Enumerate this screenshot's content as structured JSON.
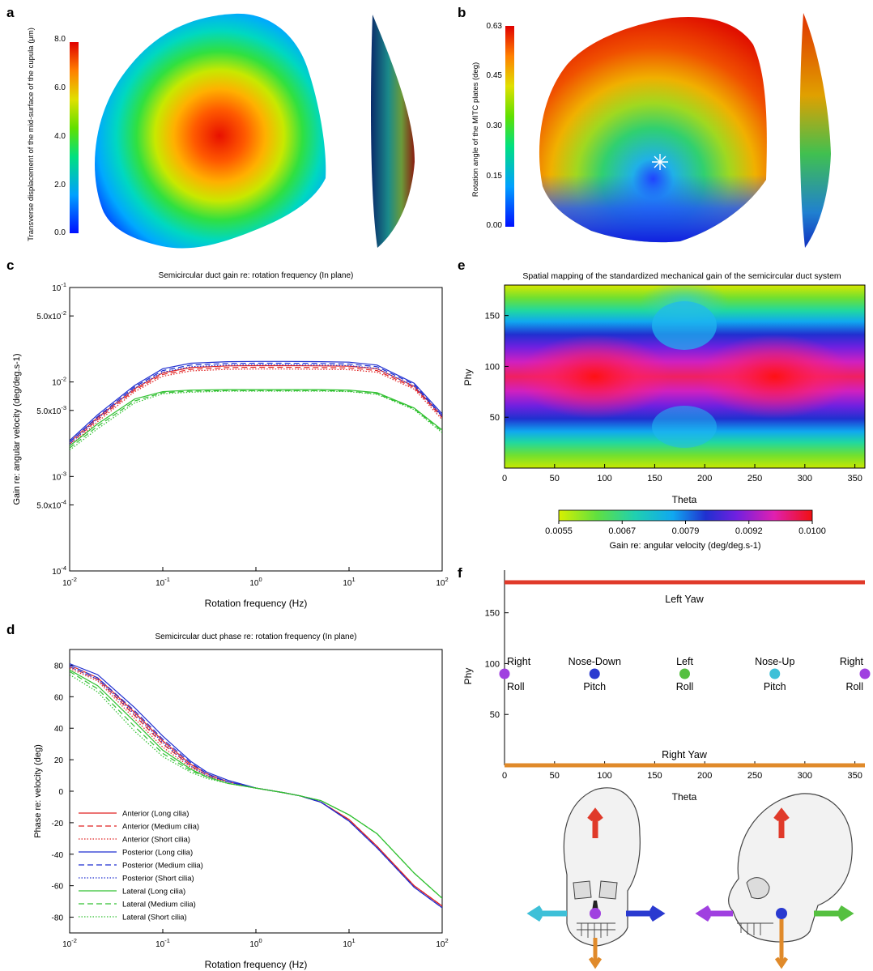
{
  "panels": {
    "a": {
      "letter": "a",
      "colorbar_label": "Transverse displacement of the mid-surface of the cupula (μm)",
      "colorbar_ticks": [
        "8.0",
        "6.0",
        "4.0",
        "2.0",
        "0.0"
      ]
    },
    "b": {
      "letter": "b",
      "colorbar_label": "Rotation angle of the MITC plates (deg)",
      "colorbar_ticks": [
        "0.63",
        "0.45",
        "0.30",
        "0.15",
        "0.00"
      ]
    },
    "c": {
      "letter": "c",
      "title": "Semicircular duct gain re: rotation frequency (In plane)",
      "xlabel": "Rotation frequency (Hz)",
      "ylabel": "Gain re: angular velocity (deg/deg.s-1)",
      "y_ticks": [
        {
          "base": "10",
          "exp": "-1",
          "value": 0.1
        },
        {
          "base": "5.0x10",
          "exp": "-2",
          "value": 0.05
        },
        {
          "base": "10",
          "exp": "-2",
          "value": 0.01
        },
        {
          "base": "5.0x10",
          "exp": "-3",
          "value": 0.005
        },
        {
          "base": "10",
          "exp": "-3",
          "value": 0.001
        },
        {
          "base": "5.0x10",
          "exp": "-4",
          "value": 0.0005
        },
        {
          "base": "10",
          "exp": "-4",
          "value": 0.0001
        }
      ],
      "x_ticks": [
        {
          "base": "10",
          "exp": "-2",
          "value": 0.01
        },
        {
          "base": "10",
          "exp": "-1",
          "value": 0.1
        },
        {
          "base": "10",
          "exp": "0",
          "value": 1
        },
        {
          "base": "10",
          "exp": "1",
          "value": 10
        },
        {
          "base": "10",
          "exp": "2",
          "value": 100
        }
      ]
    },
    "d": {
      "letter": "d",
      "title": "Semicircular duct phase re: rotation frequency (In plane)",
      "xlabel": "Rotation frequency (Hz)",
      "ylabel": "Phase re: velocity (deg)",
      "y_ticks": [
        "80",
        "60",
        "40",
        "20",
        "0",
        "-20",
        "-40",
        "-60",
        "-80"
      ],
      "x_ticks": [
        {
          "base": "10",
          "exp": "-2"
        },
        {
          "base": "10",
          "exp": "-1"
        },
        {
          "base": "10",
          "exp": "0"
        },
        {
          "base": "10",
          "exp": "1"
        },
        {
          "base": "10",
          "exp": "2"
        }
      ]
    },
    "e": {
      "letter": "e",
      "title": "Spatial mapping of the standardized mechanical gain of the semicircular duct system",
      "xlabel": "Theta",
      "ylabel": "Phy",
      "x_ticks": [
        "0",
        "50",
        "100",
        "150",
        "200",
        "250",
        "300",
        "350"
      ],
      "y_ticks": [
        "150",
        "100",
        "50"
      ],
      "colorbar_ticks": [
        "0.0055",
        "0.0067",
        "0.0079",
        "0.0092",
        "0.0100"
      ],
      "colorbar_label": "Gain re: angular velocity (deg/deg.s-1)"
    },
    "f": {
      "letter": "f",
      "xlabel": "Theta",
      "ylabel": "Phy",
      "x_ticks": [
        "0",
        "50",
        "100",
        "150",
        "200",
        "250",
        "300",
        "350"
      ],
      "y_ticks": [
        "150",
        "100",
        "50"
      ],
      "top_line_label": "Left Yaw",
      "bottom_line_label": "Right Yaw",
      "points": [
        {
          "theta": 0,
          "phy": 90,
          "top": "Right",
          "bottom": "Roll",
          "color": "#a040e0"
        },
        {
          "theta": 90,
          "phy": 90,
          "top": "Nose-Down",
          "bottom": "Pitch",
          "color": "#2a3ad0"
        },
        {
          "theta": 180,
          "phy": 90,
          "top": "Left",
          "bottom": "Roll",
          "color": "#55c040"
        },
        {
          "theta": 270,
          "phy": 90,
          "top": "Nose-Up",
          "bottom": "Pitch",
          "color": "#3ec0d8"
        },
        {
          "theta": 360,
          "phy": 90,
          "top": "Right",
          "bottom": "Roll",
          "color": "#a040e0"
        }
      ],
      "yaw_colors": {
        "left": "#e03a2a",
        "right": "#e08a2a"
      },
      "skull_icons": [
        "skull-front-icon",
        "skull-side-icon"
      ]
    }
  },
  "chart_data": [
    {
      "type": "line",
      "panel": "c",
      "title": "Semicircular duct gain re: rotation frequency (In plane)",
      "xlabel": "Rotation frequency (Hz)",
      "ylabel": "Gain re: angular velocity (deg/deg.s-1)",
      "x_scale": "log",
      "y_scale": "log",
      "xlim": [
        0.01,
        100
      ],
      "ylim": [
        0.0001,
        0.1
      ],
      "x": [
        0.01,
        0.02,
        0.05,
        0.1,
        0.2,
        0.5,
        1,
        2,
        5,
        10,
        20,
        50,
        100
      ],
      "series": [
        {
          "name": "Anterior (Long cilia)",
          "color": "#e02020",
          "dash": "solid",
          "values": [
            0.0023,
            0.0042,
            0.0085,
            0.0125,
            0.0142,
            0.0148,
            0.0149,
            0.0149,
            0.0148,
            0.0147,
            0.0138,
            0.009,
            0.0044
          ]
        },
        {
          "name": "Anterior (Medium cilia)",
          "color": "#e02020",
          "dash": "dash",
          "values": [
            0.0022,
            0.004,
            0.0082,
            0.012,
            0.0136,
            0.0142,
            0.0143,
            0.0143,
            0.0142,
            0.0141,
            0.0132,
            0.0087,
            0.0042
          ]
        },
        {
          "name": "Anterior (Short cilia)",
          "color": "#e02020",
          "dash": "dot",
          "values": [
            0.0021,
            0.0038,
            0.0079,
            0.0115,
            0.0131,
            0.0136,
            0.0137,
            0.0137,
            0.0136,
            0.0135,
            0.0127,
            0.0084,
            0.004
          ]
        },
        {
          "name": "Posterior (Long cilia)",
          "color": "#1f2fd0",
          "dash": "solid",
          "values": [
            0.0024,
            0.0045,
            0.0092,
            0.0138,
            0.0158,
            0.0164,
            0.0165,
            0.0165,
            0.0164,
            0.0162,
            0.0151,
            0.0097,
            0.0046
          ]
        },
        {
          "name": "Posterior (Medium cilia)",
          "color": "#1f2fd0",
          "dash": "dash",
          "values": [
            0.0023,
            0.0043,
            0.0089,
            0.0132,
            0.0151,
            0.0157,
            0.0158,
            0.0158,
            0.0157,
            0.0155,
            0.0145,
            0.0094,
            0.0044
          ]
        },
        {
          "name": "Posterior (Short cilia)",
          "color": "#1f2fd0",
          "dash": "dot",
          "values": [
            0.0022,
            0.0041,
            0.0086,
            0.0127,
            0.0145,
            0.0151,
            0.0152,
            0.0152,
            0.0151,
            0.0149,
            0.0139,
            0.009,
            0.0043
          ]
        },
        {
          "name": "Lateral (Long cilia)",
          "color": "#30c030",
          "dash": "solid",
          "values": [
            0.0021,
            0.0036,
            0.0066,
            0.0079,
            0.0082,
            0.0083,
            0.0083,
            0.0083,
            0.0083,
            0.0082,
            0.0077,
            0.0053,
            0.0031
          ]
        },
        {
          "name": "Lateral (Medium cilia)",
          "color": "#30c030",
          "dash": "dash",
          "values": [
            0.002,
            0.0034,
            0.0063,
            0.0077,
            0.008,
            0.0081,
            0.0081,
            0.0081,
            0.0081,
            0.008,
            0.0075,
            0.0052,
            0.003
          ]
        },
        {
          "name": "Lateral (Short cilia)",
          "color": "#30c030",
          "dash": "dot",
          "values": [
            0.0019,
            0.0032,
            0.006,
            0.0075,
            0.0078,
            0.008,
            0.008,
            0.008,
            0.008,
            0.0079,
            0.0074,
            0.0051,
            0.0029
          ]
        }
      ]
    },
    {
      "type": "line",
      "panel": "d",
      "title": "Semicircular duct phase re: rotation frequency (In plane)",
      "xlabel": "Rotation frequency (Hz)",
      "ylabel": "Phase re: velocity (deg)",
      "x_scale": "log",
      "xlim": [
        0.01,
        100
      ],
      "ylim": [
        -90,
        90
      ],
      "legend": "bottom-left",
      "x": [
        0.01,
        0.02,
        0.05,
        0.1,
        0.2,
        0.3,
        0.5,
        1,
        2,
        3,
        5,
        10,
        20,
        50,
        100
      ],
      "series": [
        {
          "name": "Anterior (Long cilia)",
          "color": "#e02020",
          "dash": "solid",
          "values": [
            80,
            72,
            50,
            32,
            17,
            11,
            6,
            2,
            -1,
            -3,
            -7,
            -18,
            -35,
            -60,
            -73
          ]
        },
        {
          "name": "Anterior (Medium cilia)",
          "color": "#e02020",
          "dash": "dash",
          "values": [
            79,
            71,
            48,
            30,
            16,
            10,
            6,
            2,
            -1,
            -3,
            -7,
            -18,
            -35,
            -60,
            -73
          ]
        },
        {
          "name": "Anterior (Short cilia)",
          "color": "#e02020",
          "dash": "dot",
          "values": [
            78,
            70,
            46,
            28,
            15,
            10,
            5,
            2,
            -1,
            -3,
            -7,
            -18,
            -35,
            -60,
            -73
          ]
        },
        {
          "name": "Posterior (Long cilia)",
          "color": "#1f2fd0",
          "dash": "solid",
          "values": [
            81,
            74,
            53,
            35,
            19,
            12,
            7,
            2,
            -1,
            -3,
            -7,
            -19,
            -36,
            -61,
            -74
          ]
        },
        {
          "name": "Posterior (Medium cilia)",
          "color": "#1f2fd0",
          "dash": "dash",
          "values": [
            80,
            72,
            51,
            33,
            18,
            11,
            6,
            2,
            -1,
            -3,
            -7,
            -19,
            -36,
            -61,
            -74
          ]
        },
        {
          "name": "Posterior (Short cilia)",
          "color": "#1f2fd0",
          "dash": "dot",
          "values": [
            79,
            71,
            49,
            31,
            16,
            10,
            6,
            2,
            -1,
            -3,
            -7,
            -19,
            -36,
            -61,
            -74
          ]
        },
        {
          "name": "Lateral (Long cilia)",
          "color": "#30c030",
          "dash": "solid",
          "values": [
            77,
            67,
            44,
            26,
            14,
            9,
            5,
            2,
            -1,
            -3,
            -6,
            -15,
            -27,
            -52,
            -68
          ]
        },
        {
          "name": "Lateral (Medium cilia)",
          "color": "#30c030",
          "dash": "dash",
          "values": [
            76,
            65,
            41,
            24,
            13,
            9,
            5,
            2,
            -1,
            -3,
            -6,
            -15,
            -27,
            -52,
            -68
          ]
        },
        {
          "name": "Lateral (Short cilia)",
          "color": "#30c030",
          "dash": "dot",
          "values": [
            74,
            63,
            38,
            22,
            12,
            8,
            5,
            2,
            -1,
            -3,
            -6,
            -15,
            -27,
            -52,
            -68
          ]
        }
      ]
    },
    {
      "type": "heatmap",
      "panel": "e",
      "title": "Spatial mapping of the standardized mechanical gain of the semicircular duct system",
      "xlabel": "Theta",
      "ylabel": "Phy",
      "xlim": [
        0,
        360
      ],
      "ylim": [
        0,
        180
      ],
      "zlim": [
        0.0055,
        0.01
      ],
      "colorbar_label": "Gain re: angular velocity (deg/deg.s-1)",
      "maxima": [
        {
          "theta": 90,
          "phy": 90,
          "value": 0.01
        },
        {
          "theta": 270,
          "phy": 90,
          "value": 0.01
        }
      ]
    },
    {
      "type": "scatter",
      "panel": "f",
      "xlabel": "Theta",
      "ylabel": "Phy",
      "xlim": [
        0,
        360
      ],
      "ylim": [
        0,
        180
      ],
      "series": [
        {
          "name": "Right Roll",
          "x": [
            0,
            360
          ],
          "y": [
            90,
            90
          ]
        },
        {
          "name": "Nose-Down Pitch",
          "x": [
            90
          ],
          "y": [
            90
          ]
        },
        {
          "name": "Left Roll",
          "x": [
            180
          ],
          "y": [
            90
          ]
        },
        {
          "name": "Nose-Up Pitch",
          "x": [
            270
          ],
          "y": [
            90
          ]
        },
        {
          "name": "Left Yaw",
          "x": [
            0,
            360
          ],
          "y": [
            180,
            180
          ]
        },
        {
          "name": "Right Yaw",
          "x": [
            0,
            360
          ],
          "y": [
            0,
            0
          ]
        }
      ]
    }
  ]
}
